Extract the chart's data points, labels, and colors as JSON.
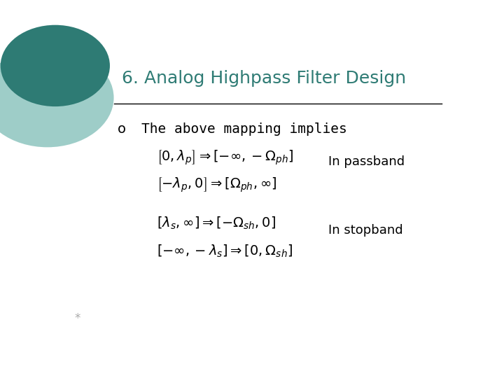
{
  "title": "6. Analog Highpass Filter Design",
  "title_color": "#2E7B74",
  "title_fontsize": 18,
  "bullet_text": "The above mapping implies",
  "bullet_fontsize": 14,
  "bullet_color": "#000000",
  "eq_passband_line1": "$\\left[0,\\lambda_p\\right] \\Rightarrow \\left[-\\infty,-\\Omega_{ph}\\right]$",
  "eq_passband_line2": "$\\left[-\\lambda_p,0\\right] \\Rightarrow \\left[\\Omega_{ph},\\infty\\right]$",
  "eq_stopband_line1": "$\\left[\\lambda_s,\\infty\\right] \\Rightarrow \\left[-\\Omega_{sh},0\\right]$",
  "eq_stopband_line2": "$\\left[-\\infty,-\\lambda_s\\right] \\Rightarrow \\left[0,\\Omega_{sh}\\right]$",
  "label_passband": "In passband",
  "label_stopband": "In stopband",
  "label_fontsize": 13,
  "eq_fontsize": 14,
  "bg_color": "#ffffff",
  "text_color": "#000000",
  "line_color": "#000000",
  "circle_dark": "#2E7B74",
  "circle_light": "#9ECDC8",
  "footer_text": "*",
  "footer_fontsize": 12
}
